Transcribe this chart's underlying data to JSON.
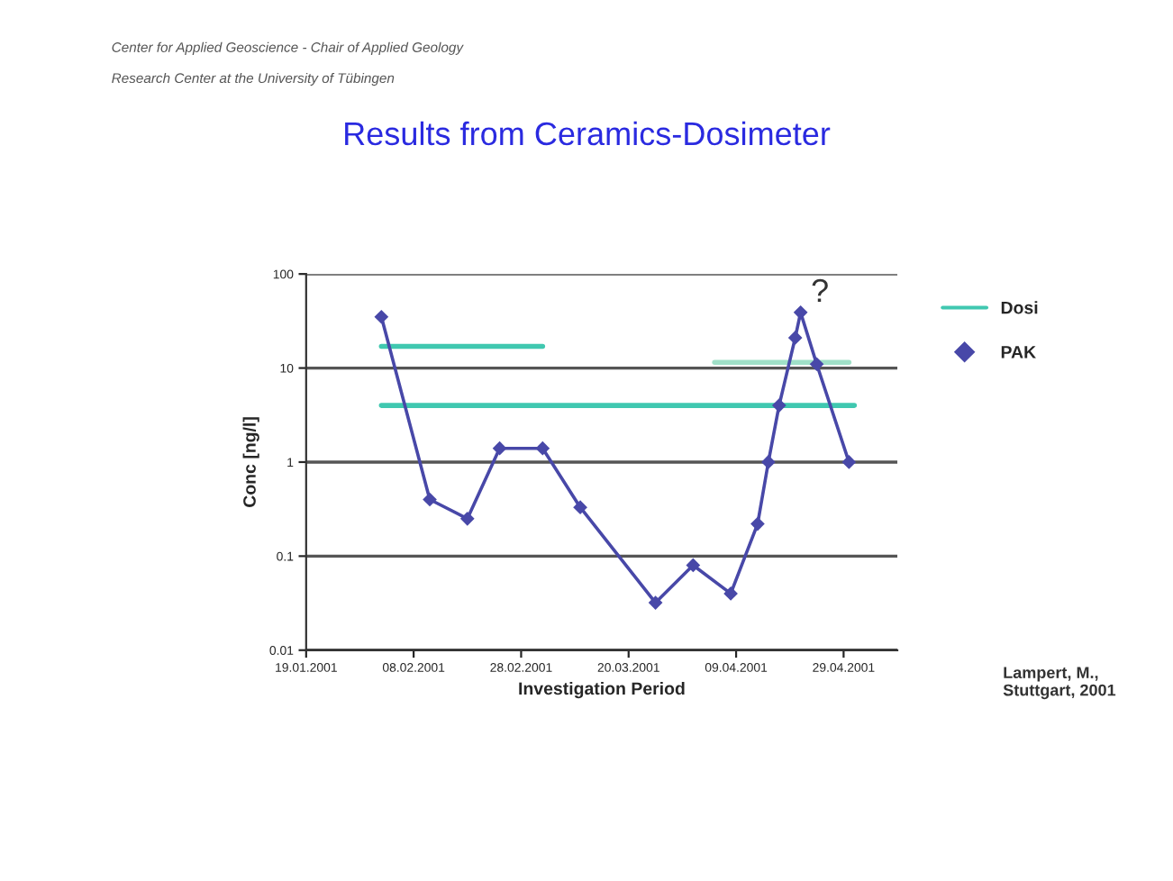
{
  "chart_data": {
    "type": "line",
    "title": "Results from Ceramics-Dosimeter",
    "xlabel": "Investigation Period",
    "ylabel": "Conc [ng/l]",
    "log": "y",
    "grid": "y",
    "legend": "right",
    "xlim": [
      "2001-01-19",
      "2001-05-09"
    ],
    "xticks": [
      {
        "value": "2001-01-19",
        "label": "19.01.2001"
      },
      {
        "value": "2001-02-08",
        "label": "08.02.2001"
      },
      {
        "value": "2001-02-28",
        "label": "28.02.2001"
      },
      {
        "value": "2001-03-20",
        "label": "20.03.2001"
      },
      {
        "value": "2001-04-09",
        "label": "09.04.2001"
      },
      {
        "value": "2001-04-29",
        "label": "29.04.2001"
      }
    ],
    "ylim": [
      0.01,
      100
    ],
    "yticks": [
      0.01,
      0.1,
      1,
      10,
      100
    ],
    "series": [
      {
        "name": "Dosi",
        "color": "#40c8b0",
        "marker": "none",
        "x": [
          "2001-02-02",
          "2001-03-04"
        ],
        "values": [
          17,
          17
        ]
      },
      {
        "color": "#40c8b0",
        "marker": "none",
        "x": [
          "2001-02-02",
          "2001-05-01"
        ],
        "values": [
          4,
          4
        ]
      },
      {
        "color": "#a0e0c8",
        "marker": "none",
        "x": [
          "2001-04-05",
          "2001-04-30"
        ],
        "values": [
          11.5,
          11.5
        ]
      },
      {
        "name": "PAK",
        "color": "#4848a8",
        "marker": "diamond",
        "x": [
          "2001-02-02",
          "2001-02-11",
          "2001-02-18",
          "2001-02-24",
          "2001-03-04",
          "2001-03-11",
          "2001-03-25",
          "2001-04-01",
          "2001-04-08",
          "2001-04-13",
          "2001-04-15",
          "2001-04-17",
          "2001-04-20",
          "2001-04-21",
          "2001-04-24",
          "2001-04-30"
        ],
        "values": [
          35,
          0.4,
          0.25,
          1.4,
          1.4,
          0.33,
          0.032,
          0.08,
          0.04,
          0.22,
          1,
          4,
          21,
          39,
          11,
          1
        ]
      }
    ],
    "annotations": [
      "?",
      "Center for Applied Geoscience - Chair of Applied Geology",
      "Research Center at the University of Tübingen",
      "Lampert, M.,\nStuttgart, 2001"
    ]
  }
}
